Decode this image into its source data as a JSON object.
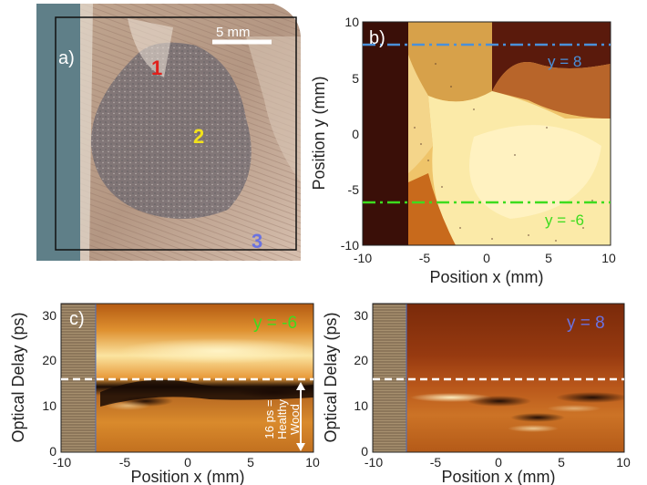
{
  "panel_a": {
    "label": "a)",
    "scale_bar_label": "5 mm",
    "region_labels": [
      {
        "text": "1",
        "color": "#e0201c"
      },
      {
        "text": "2",
        "color": "#f2e21a"
      },
      {
        "text": "3",
        "color": "#6a72e0"
      }
    ]
  },
  "panel_b": {
    "label": "b)"
  },
  "panel_c": {
    "label": "c)"
  },
  "colors": {
    "blue_line": "#4a90d9",
    "green_line": "#3ddc1e",
    "dashed": "#ffffff"
  },
  "chart_data": [
    {
      "type": "heatmap",
      "panel": "b)",
      "xlabel": "Position x (mm)",
      "ylabel": "Position y (mm)",
      "xlim": [
        -10,
        10
      ],
      "ylim": [
        -10,
        10
      ],
      "x_ticks": [
        "-10",
        "-5",
        "0",
        "5",
        "10"
      ],
      "y_ticks": [
        "10",
        "5",
        "0",
        "-5",
        "-10"
      ],
      "annotations": [
        {
          "text": "y = 8",
          "y": 8,
          "color": "#4a90d9"
        },
        {
          "text": "y = -6",
          "y": -6,
          "color": "#3ddc1e"
        }
      ]
    },
    {
      "type": "heatmap",
      "panel": "c)",
      "xlabel": "Position x (mm)",
      "ylabel": "Optical Delay (ps)",
      "xlim": [
        -10,
        10
      ],
      "ylim": [
        0,
        33
      ],
      "x_ticks": [
        "-10",
        "-5",
        "0",
        "5",
        "10"
      ],
      "y_ticks": [
        "30",
        "20",
        "10",
        "0"
      ],
      "title": "y = -6",
      "title_color": "#3ddc1e",
      "reference_delay": 16,
      "annotation_lines": [
        "16 ps =",
        "Healthy",
        "Wood"
      ]
    },
    {
      "type": "heatmap",
      "panel": "d",
      "xlabel": "Position x (mm)",
      "ylabel": "Optical Delay (ps)",
      "xlim": [
        -10,
        10
      ],
      "ylim": [
        0,
        33
      ],
      "x_ticks": [
        "-10",
        "-5",
        "0",
        "5",
        "10"
      ],
      "y_ticks": [
        "30",
        "20",
        "10",
        "0"
      ],
      "title": "y = 8",
      "title_color": "#6a72e0",
      "reference_delay": 16
    }
  ]
}
